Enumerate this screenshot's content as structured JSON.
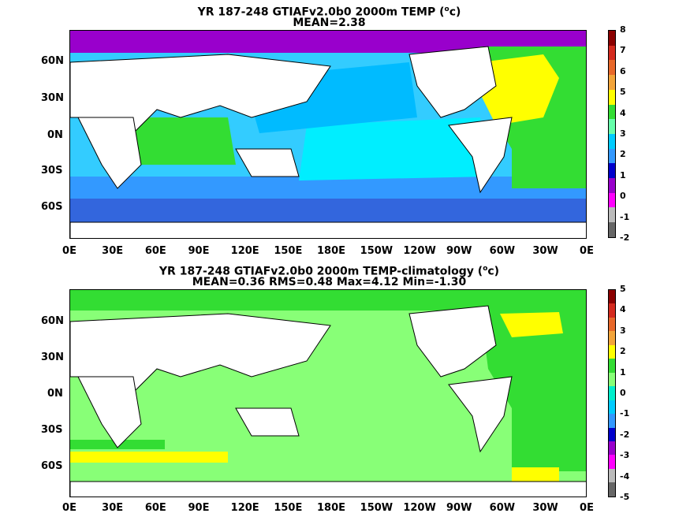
{
  "top": {
    "title_prefix": "YR 187-248 GTIAFv2.0b0 2000m TEMP (",
    "title_unit_sup": "o",
    "title_suffix": "c)",
    "subtitle": "MEAN=2.38",
    "colorbar_labels": [
      "8",
      "7",
      "6",
      "5",
      "4",
      "3",
      "2",
      "1",
      "0",
      "-1",
      "-2"
    ],
    "colorbar_colors": [
      "#8b0000",
      "#d42a1e",
      "#e8682a",
      "#f2a43a",
      "#ffff00",
      "#33dd33",
      "#66ffaa",
      "#00ccff",
      "#3399ff",
      "#0000cc",
      "#9900cc",
      "#ff00ff",
      "#bbbbbb",
      "#666666"
    ],
    "fill_colors": {
      "north": "#00bbff",
      "subtropics": "#33ccff",
      "deep": "#00eeff",
      "southern": "#3399ff",
      "polar": "#3366dd",
      "arctic": "#9900cc",
      "atlantic_north": "#ffff00",
      "atlantic": "#33dd33"
    }
  },
  "bottom": {
    "title_prefix": "YR 187-248 GTIAFv2.0b0 2000m TEMP-climatology (",
    "title_unit_sup": "o",
    "title_suffix": "c)",
    "subtitle": "MEAN=0.36   RMS=0.48   Max=4.12   Min=-1.30",
    "colorbar_labels": [
      "5",
      "4",
      "3",
      "2",
      "1",
      "0",
      "-1",
      "-2",
      "-3",
      "-4",
      "-5"
    ],
    "colorbar_colors": [
      "#8b0000",
      "#d42a1e",
      "#e8682a",
      "#f2a43a",
      "#ffff00",
      "#33dd33",
      "#88ff77",
      "#00eecc",
      "#00ccff",
      "#3399ff",
      "#0000cc",
      "#9900cc",
      "#ff00ff",
      "#bbbbbb",
      "#666666"
    ],
    "fill_colors": {
      "pacific": "#88ff77",
      "atlantic": "#33dd33",
      "yellow": "#ffff00"
    }
  },
  "lat_labels": [
    "60N",
    "30N",
    "0N",
    "30S",
    "60S"
  ],
  "lon_labels": [
    "0E",
    "30E",
    "60E",
    "90E",
    "120E",
    "150E",
    "180E",
    "150W",
    "120W",
    "90W",
    "60W",
    "30W",
    "0E"
  ]
}
